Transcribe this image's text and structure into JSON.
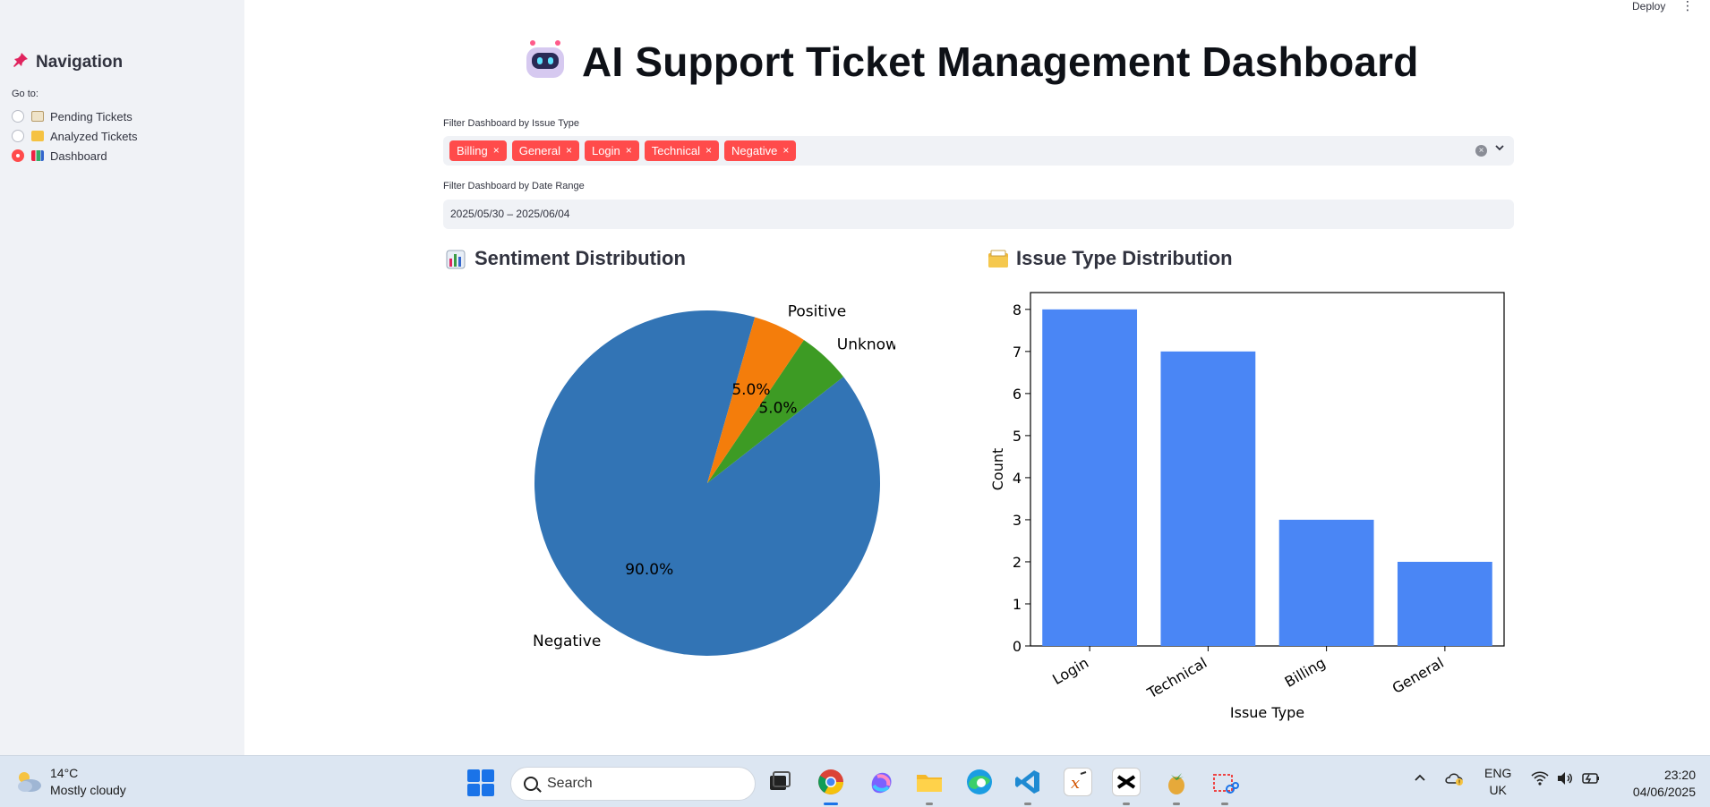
{
  "top_bar": {
    "deploy_label": "Deploy",
    "menu_glyph": "⋮"
  },
  "sidebar": {
    "title": "Navigation",
    "title_icon": "pushpin-icon",
    "goto_label": "Go to:",
    "items": [
      {
        "label": "Pending Tickets",
        "icon": "notepad-icon",
        "selected": false
      },
      {
        "label": "Analyzed Tickets",
        "icon": "folder-icon",
        "selected": false
      },
      {
        "label": "Dashboard",
        "icon": "bar-chart-icon",
        "selected": true
      }
    ]
  },
  "header": {
    "title": "AI Support Ticket Management Dashboard",
    "icon": "robot-icon"
  },
  "filters": {
    "issue_type_label": "Filter Dashboard by Issue Type",
    "issue_type_tags": [
      "Billing",
      "General",
      "Login",
      "Technical",
      "Negative"
    ],
    "tag_remove_glyph": "×",
    "clear_glyph": "×",
    "chevron_glyph": "⌄",
    "date_range_label": "Filter Dashboard by Date Range",
    "date_range_value": "2025/05/30 – 2025/06/04",
    "accent_color": "#ff4b4b"
  },
  "sections": {
    "sentiment_title": "Sentiment Distribution",
    "issue_type_title": "Issue Type Distribution"
  },
  "chart_data": [
    {
      "type": "pie",
      "labels": [
        "Negative",
        "Unknown",
        "Positive"
      ],
      "values": [
        90.0,
        5.0,
        5.0
      ],
      "value_labels": [
        "90.0%",
        "5.0%",
        "5.0%"
      ],
      "colors": [
        "#3274b5",
        "#3d9b24",
        "#f47d0b"
      ]
    },
    {
      "type": "bar",
      "categories": [
        "Login",
        "Technical",
        "Billing",
        "General"
      ],
      "values": [
        8,
        7,
        3,
        2
      ],
      "xlabel": "Issue Type",
      "ylabel": "Count",
      "ylim": [
        0,
        8
      ],
      "yticks": [
        "0",
        "1",
        "2",
        "3",
        "4",
        "5",
        "6",
        "7",
        "8"
      ],
      "color": "#4a86f5"
    }
  ],
  "taskbar": {
    "weather_temp": "14°C",
    "weather_desc": "Mostly cloudy",
    "search_placeholder": "Search",
    "language_line1": "ENG",
    "language_line2": "UK",
    "time": "23:20",
    "date": "04/06/2025"
  }
}
